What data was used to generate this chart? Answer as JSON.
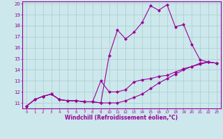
{
  "xlabel": "Windchill (Refroidissement éolien,°C)",
  "x": [
    0,
    1,
    2,
    3,
    4,
    5,
    6,
    7,
    8,
    9,
    10,
    11,
    12,
    13,
    14,
    15,
    16,
    17,
    18,
    19,
    20,
    21,
    22,
    23
  ],
  "line1": [
    10.7,
    11.3,
    11.6,
    11.8,
    11.3,
    11.2,
    11.2,
    11.1,
    11.1,
    11.0,
    15.3,
    17.6,
    16.8,
    17.4,
    18.3,
    19.8,
    19.4,
    19.9,
    17.9,
    18.1,
    16.3,
    14.9,
    14.7,
    14.6
  ],
  "line2": [
    10.7,
    11.3,
    11.6,
    11.8,
    11.3,
    11.2,
    11.2,
    11.1,
    11.1,
    13.0,
    12.0,
    12.0,
    12.2,
    12.9,
    13.1,
    13.2,
    13.4,
    13.5,
    13.8,
    14.1,
    14.3,
    14.6,
    14.7,
    14.6
  ],
  "line3": [
    10.7,
    11.3,
    11.6,
    11.8,
    11.3,
    11.2,
    11.2,
    11.1,
    11.1,
    11.0,
    11.0,
    11.0,
    11.2,
    11.5,
    11.8,
    12.3,
    12.8,
    13.2,
    13.6,
    14.0,
    14.3,
    14.5,
    14.7,
    14.6
  ],
  "line_color": "#990099",
  "bg_color": "#cce8ec",
  "grid_color": "#aacccc",
  "ylim": [
    10.5,
    20.2
  ],
  "xlim": [
    -0.5,
    23.5
  ],
  "yticks": [
    11,
    12,
    13,
    14,
    15,
    16,
    17,
    18,
    19,
    20
  ],
  "xticks": [
    0,
    1,
    2,
    3,
    4,
    5,
    6,
    7,
    8,
    9,
    10,
    11,
    12,
    13,
    14,
    15,
    16,
    17,
    18,
    19,
    20,
    21,
    22,
    23
  ]
}
